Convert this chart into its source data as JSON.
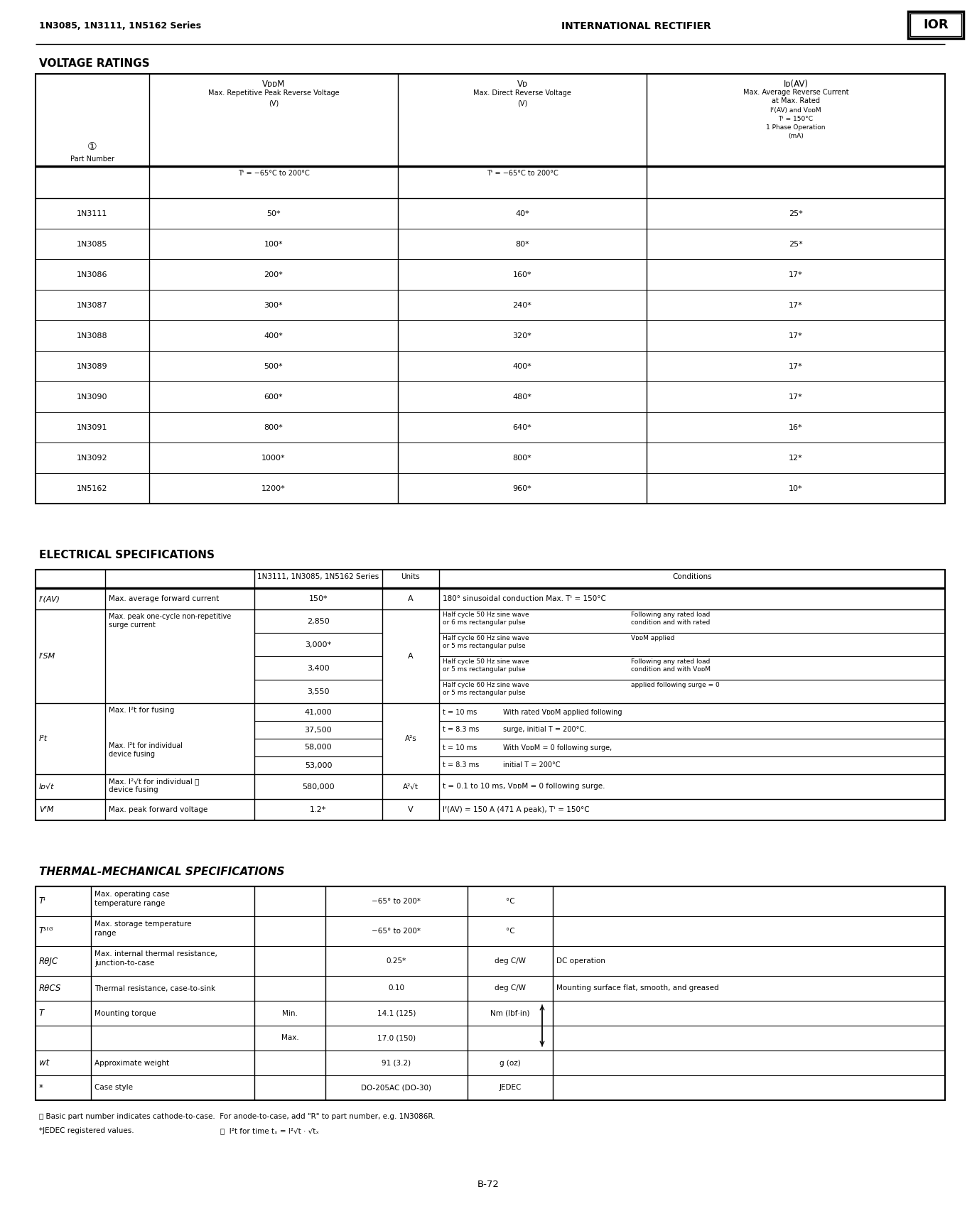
{
  "header_left": "1N3085, 1N3111, 1N5162 Series",
  "header_right": "INTERNATIONAL RECTIFIER",
  "logo": "IOR",
  "sec1": "VOLTAGE RATINGS",
  "sec2": "ELECTRICAL SPECIFICATIONS",
  "sec3": "THERMAL-MECHANICAL SPECIFICATIONS",
  "vr_rows": [
    [
      "1N3111",
      "50*",
      "40*",
      "25*"
    ],
    [
      "1N3085",
      "100*",
      "80*",
      "25*"
    ],
    [
      "1N3086",
      "200*",
      "160*",
      "17*"
    ],
    [
      "1N3087",
      "300*",
      "240*",
      "17*"
    ],
    [
      "1N3088",
      "400*",
      "320*",
      "17*"
    ],
    [
      "1N3089",
      "500*",
      "400*",
      "17*"
    ],
    [
      "1N3090",
      "600*",
      "480*",
      "17*"
    ],
    [
      "1N3091",
      "800*",
      "640*",
      "16*"
    ],
    [
      "1N3092",
      "1000*",
      "800*",
      "12*"
    ],
    [
      "1N5162",
      "1200*",
      "960*",
      "10*"
    ]
  ],
  "footnote1": "ⓘ Basic part number indicates cathode-to-case.  For anode-to-case, add \"R\" to part number, e.g. 1N3086R.",
  "footnote2": "*JEDEC registered values.",
  "footnote3": "ⓙ  I²t for time tₓ = I²√t · √tₓ",
  "page_num": "B-72"
}
